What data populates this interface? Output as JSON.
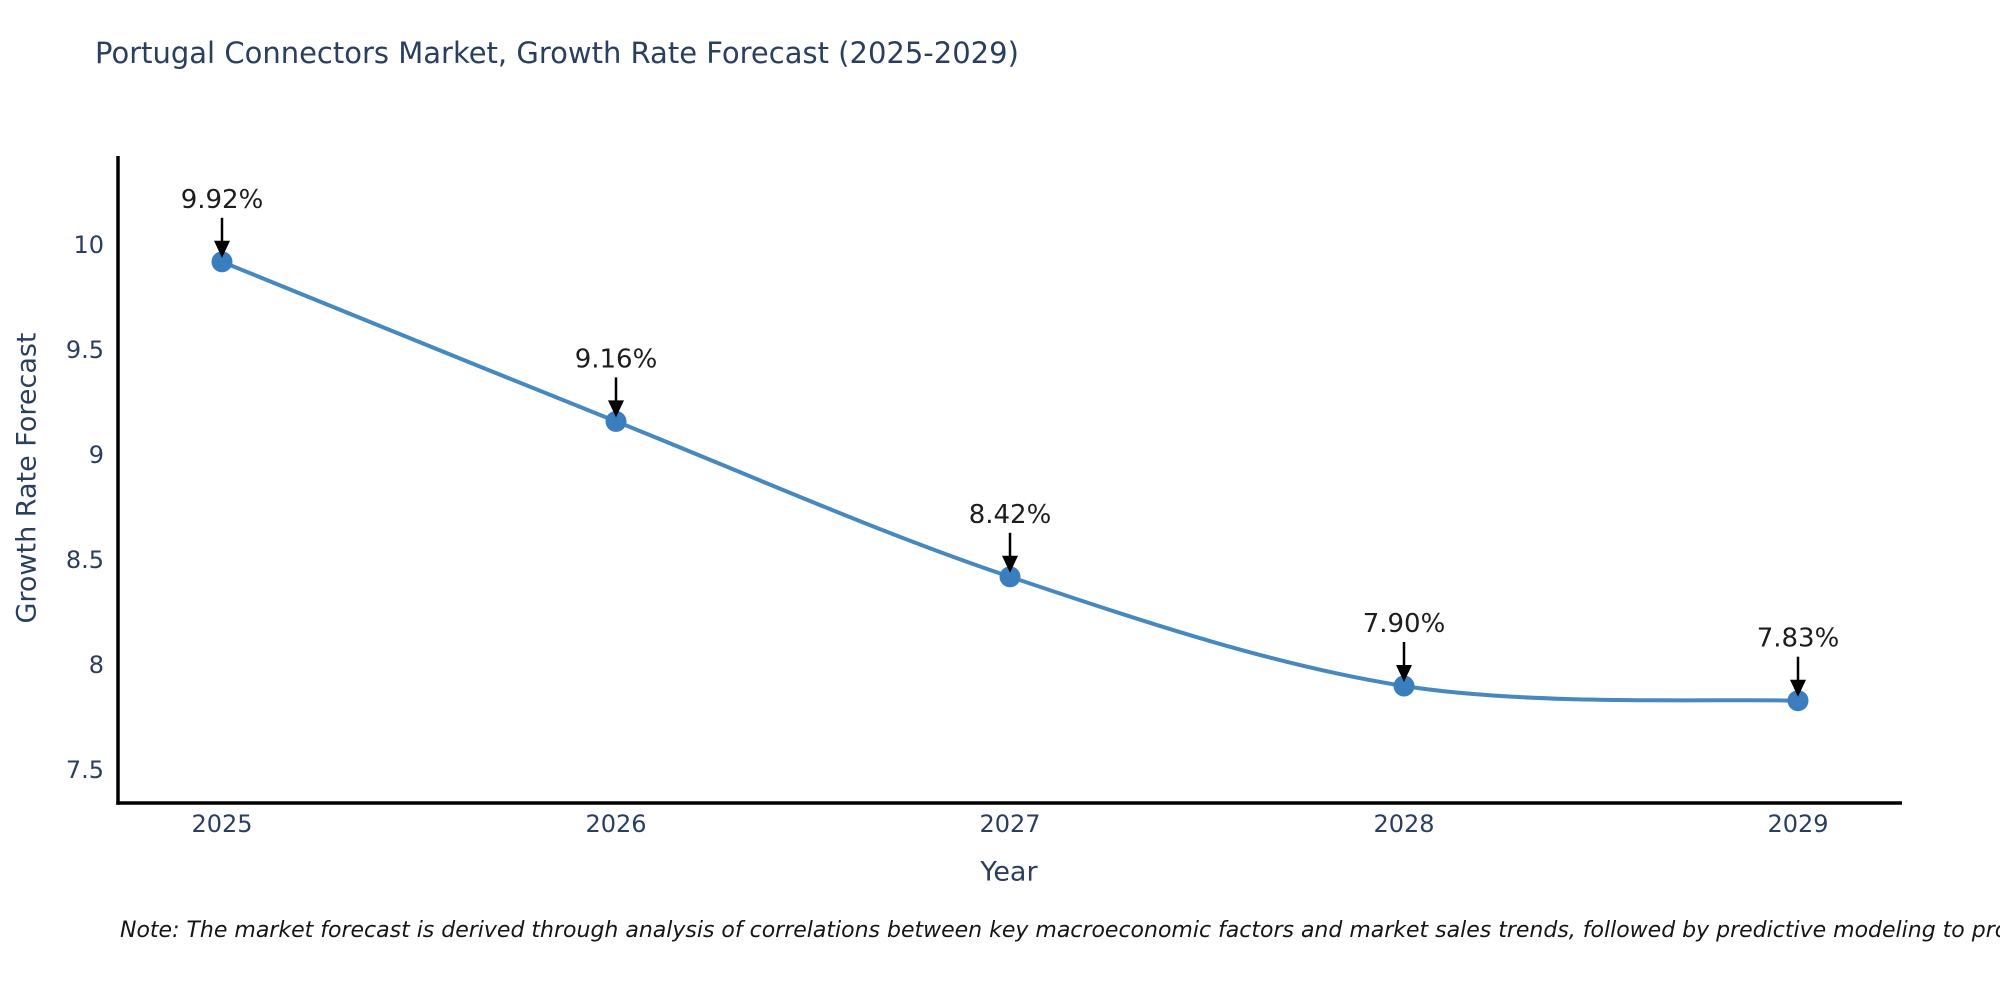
{
  "chart": {
    "title": "Portugal Connectors Market, Growth Rate Forecast (2025-2029)"
  },
  "chart_data": {
    "type": "line",
    "title": "Portugal Connectors Market, Growth Rate Forecast (2025-2029)",
    "categories": [
      "2025",
      "2026",
      "2027",
      "2028",
      "2029"
    ],
    "values": [
      9.92,
      9.16,
      8.42,
      7.9,
      7.83
    ],
    "point_labels": [
      "9.92%",
      "9.16%",
      "8.42%",
      "7.90%",
      "7.83%"
    ],
    "xlabel": "Year",
    "ylabel": "Growth Rate Forecast",
    "ytick_values": [
      10,
      9.5,
      9,
      8.5,
      8,
      7.5
    ],
    "ytick_labels": [
      "10",
      "9.5",
      "9",
      "8.5",
      "8",
      "7.5"
    ],
    "ylim": [
      7.34,
      10.44
    ],
    "line_shape": "spline",
    "grid": false,
    "legend": "none",
    "colors": {
      "line": "#4789bf",
      "marker": "#3b7ebd",
      "axis_line": "#000000",
      "axis_text": "#2a3f5f",
      "annotation_text": "#1d1d1d",
      "annotation_arrow": "#000000"
    }
  },
  "note": {
    "text": "Note: The market forecast is derived through analysis of correlations between key macroeconomic factors and market sales trends, followed by predictive modeling to project future sales"
  }
}
